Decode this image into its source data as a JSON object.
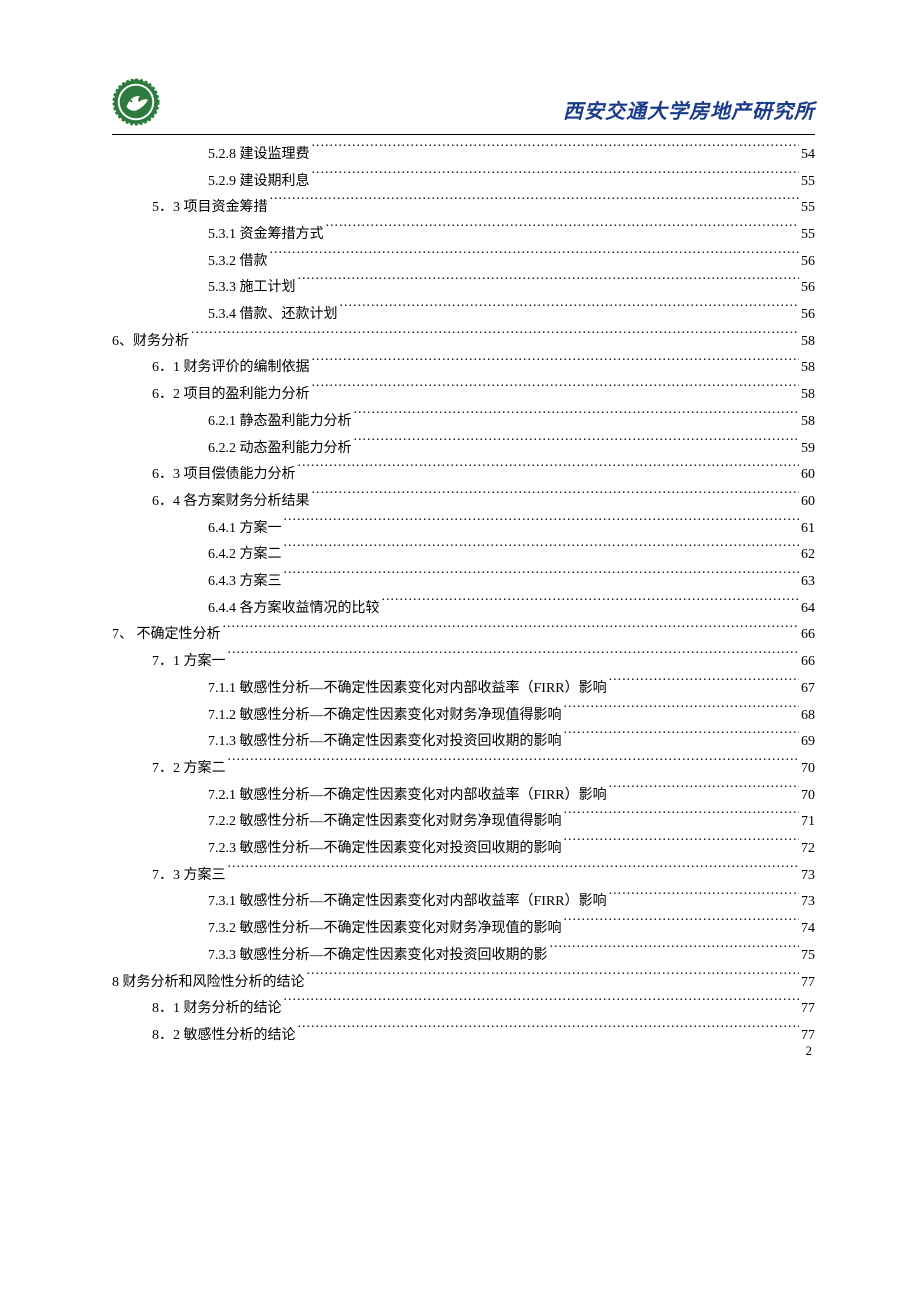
{
  "header": {
    "title": "西安交通大学房地产研究所"
  },
  "toc": [
    {
      "indent": 2,
      "label": "5.2.8  建设监理费",
      "page": "54"
    },
    {
      "indent": 2,
      "label": "5.2.9  建设期利息",
      "page": "55"
    },
    {
      "indent": 1,
      "label": "5．3 项目资金筹措",
      "page": "55"
    },
    {
      "indent": 2,
      "label": "5.3.1  资金筹措方式",
      "page": "55"
    },
    {
      "indent": 2,
      "label": "5.3.2  借款",
      "page": "56"
    },
    {
      "indent": 2,
      "label": "5.3.3 施工计划",
      "page": "56"
    },
    {
      "indent": 2,
      "label": "5.3.4  借款、还款计划",
      "page": "56"
    },
    {
      "indent": 0,
      "label": "6、财务分析",
      "page": "58"
    },
    {
      "indent": 1,
      "label": "6．1 财务评价的编制依据",
      "page": "58"
    },
    {
      "indent": 1,
      "label": "6．2  项目的盈利能力分析",
      "page": "58"
    },
    {
      "indent": 2,
      "label": "6.2.1 静态盈利能力分析",
      "page": "58"
    },
    {
      "indent": 2,
      "label": "6.2.2 动态盈利能力分析",
      "page": "59"
    },
    {
      "indent": 1,
      "label": "6．3  项目偿债能力分析",
      "page": "60"
    },
    {
      "indent": 1,
      "label": "6．4  各方案财务分析结果",
      "page": "60"
    },
    {
      "indent": 2,
      "label": "6.4.1  方案一",
      "page": "61"
    },
    {
      "indent": 2,
      "label": "6.4.2  方案二",
      "page": "62"
    },
    {
      "indent": 2,
      "label": "6.4.3  方案三",
      "page": "63"
    },
    {
      "indent": 2,
      "label": "6.4.4     各方案收益情况的比较",
      "page": "64"
    },
    {
      "indent": 0,
      "label": "7、    不确定性分析",
      "page": "66"
    },
    {
      "indent": 1,
      "label": "7．1 方案一",
      "page": "66"
    },
    {
      "indent": 2,
      "label": "7.1.1 敏感性分析—不确定性因素变化对内部收益率（FIRR）影响",
      "page": "67"
    },
    {
      "indent": 2,
      "label": "7.1.2 敏感性分析—不确定性因素变化对财务净现值得影响",
      "page": "68"
    },
    {
      "indent": 2,
      "label": "7.1.3 敏感性分析—不确定性因素变化对投资回收期的影响",
      "page": "69"
    },
    {
      "indent": 1,
      "label": "7．2 方案二",
      "page": "70"
    },
    {
      "indent": 2,
      "label": "7.2.1 敏感性分析—不确定性因素变化对内部收益率（FIRR）影响",
      "page": "70"
    },
    {
      "indent": 2,
      "label": "7.2.2 敏感性分析—不确定性因素变化对财务净现值得影响",
      "page": "71"
    },
    {
      "indent": 2,
      "label": "7.2.3 敏感性分析—不确定性因素变化对投资回收期的影响",
      "page": "72"
    },
    {
      "indent": 1,
      "label": "7．3 方案三",
      "page": "73"
    },
    {
      "indent": 2,
      "label": "7.3.1  敏感性分析—不确定性因素变化对内部收益率（FIRR）影响",
      "page": "73"
    },
    {
      "indent": 2,
      "label": "7.3.2 敏感性分析—不确定性因素变化对财务净现值的影响",
      "page": "74"
    },
    {
      "indent": 2,
      "label": "7.3.3 敏感性分析—不确定性因素变化对投资回收期的影",
      "page": "75"
    },
    {
      "indent": 0,
      "label": "8  财务分析和风险性分析的结论",
      "page": "77"
    },
    {
      "indent": 1,
      "label": "8．1  财务分析的结论",
      "page": "77"
    },
    {
      "indent": 1,
      "label": "8．2  敏感性分析的结论",
      "page": "77"
    }
  ],
  "pageNumber": "2",
  "colors": {
    "logo_outer": "#2d7a3e",
    "logo_inner": "#ffffff",
    "header_text": "#1a3a8a",
    "text": "#000000",
    "background": "#ffffff"
  }
}
